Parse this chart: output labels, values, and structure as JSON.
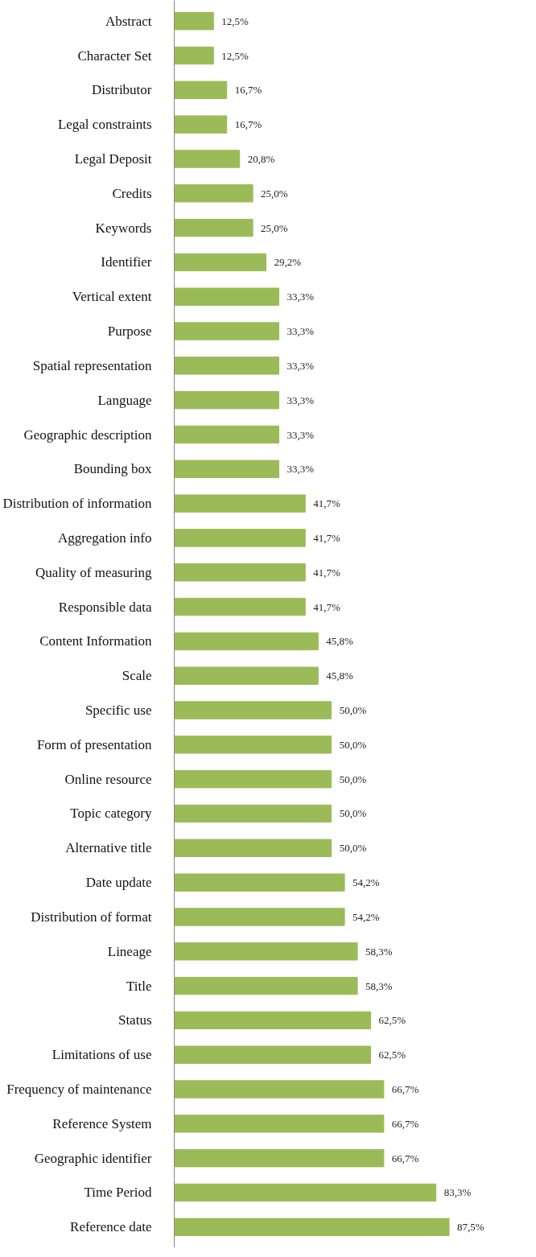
{
  "chart_data": {
    "type": "bar",
    "orientation": "horizontal",
    "color": "#9bbb59",
    "grid": false,
    "tick_labels": "y",
    "categories": [
      "Abstract",
      "Character Set",
      "Distributor",
      "Legal constraints",
      "Legal Deposit",
      "Credits",
      "Keywords",
      "Identifier",
      "Vertical extent",
      "Purpose",
      "Spatial representation",
      "Language",
      "Geographic description",
      "Bounding box",
      "Distribution of information",
      "Aggregation info",
      "Quality of measuring",
      "Responsible data",
      "Content Information",
      "Scale",
      "Specific use",
      "Form of presentation",
      "Online resource",
      "Topic category",
      "Alternative title",
      "Date update",
      "Distribution of format",
      "Lineage",
      "Title",
      "Status",
      "Limitations of use",
      "Frequency of maintenance",
      "Reference System",
      "Geographic identifier",
      "Time Period",
      "Reference date"
    ],
    "values": [
      12.5,
      12.5,
      16.7,
      16.7,
      20.8,
      25.0,
      25.0,
      29.2,
      33.3,
      33.3,
      33.3,
      33.3,
      33.3,
      33.3,
      41.7,
      41.7,
      41.7,
      41.7,
      45.8,
      45.8,
      50.0,
      50.0,
      50.0,
      50.0,
      50.0,
      54.2,
      54.2,
      58.3,
      58.3,
      62.5,
      62.5,
      66.7,
      66.7,
      66.7,
      83.3,
      87.5
    ],
    "value_labels": [
      "12,5%",
      "12,5%",
      "16,7%",
      "16,7%",
      "20,8%",
      "25,0%",
      "25,0%",
      "29,2%",
      "33,3%",
      "33,3%",
      "33,3%",
      "33,3%",
      "33,3%",
      "33,3%",
      "41,7%",
      "41,7%",
      "41,7%",
      "41,7%",
      "45,8%",
      "45,8%",
      "50,0%",
      "50,0%",
      "50,0%",
      "50,0%",
      "50,0%",
      "54,2%",
      "54,2%",
      "58,3%",
      "58,3%",
      "62,5%",
      "62,5%",
      "66,7%",
      "66,7%",
      "66,7%",
      "83,3%",
      "87,5%"
    ]
  }
}
